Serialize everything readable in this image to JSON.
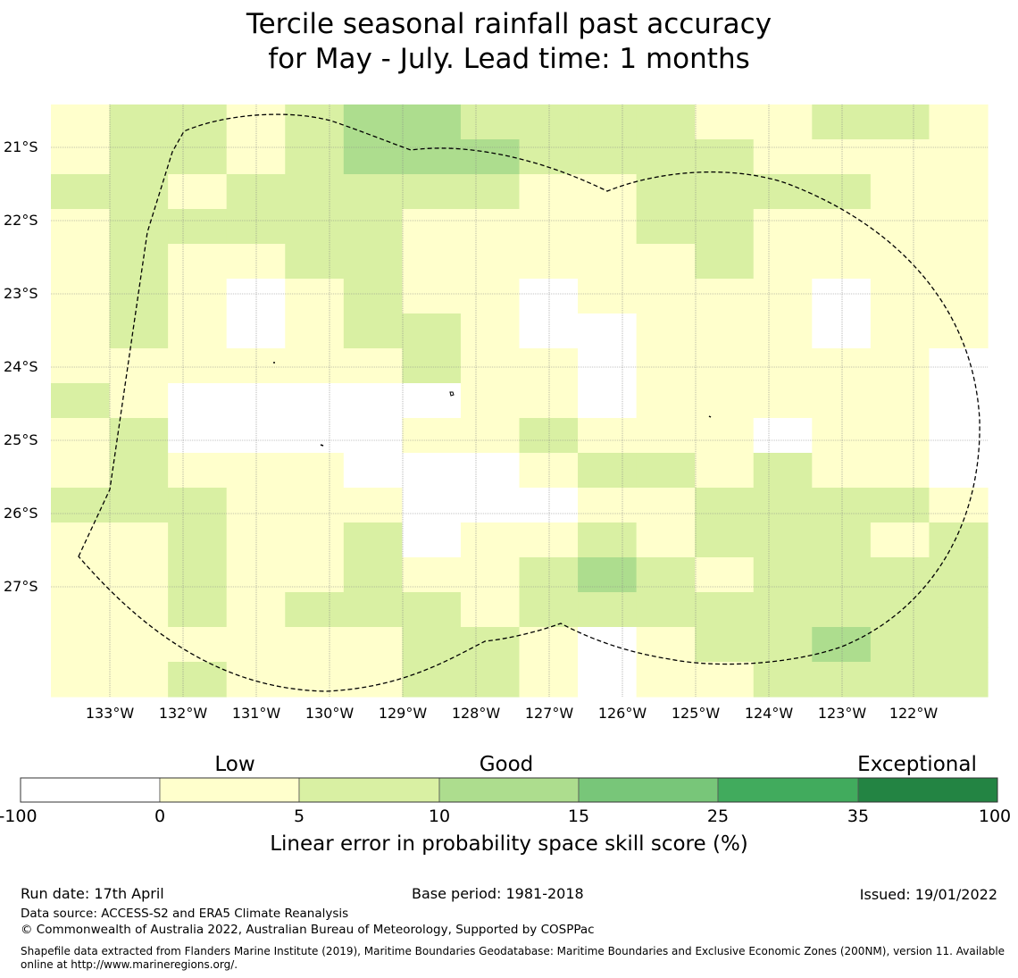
{
  "title": {
    "line1": "Tercile seasonal rainfall past accuracy",
    "line2": "for May - July. Lead time: 1 months"
  },
  "map": {
    "lat_labels": [
      "21°S",
      "22°S",
      "23°S",
      "24°S",
      "25°S",
      "26°S",
      "27°S"
    ],
    "lon_labels": [
      "133°W",
      "132°W",
      "131°W",
      "130°W",
      "129°W",
      "128°W",
      "127°W",
      "126°W",
      "125°W",
      "124°W",
      "123°W",
      "122°W"
    ],
    "skill_grid_bins": [
      [
        1,
        2,
        2,
        1,
        2,
        3,
        3,
        2,
        2,
        2,
        2,
        1,
        1,
        2,
        2,
        1
      ],
      [
        1,
        2,
        2,
        1,
        2,
        3,
        3,
        3,
        2,
        2,
        2,
        2,
        1,
        1,
        1,
        1
      ],
      [
        2,
        2,
        1,
        2,
        2,
        2,
        2,
        2,
        1,
        1,
        2,
        2,
        2,
        2,
        1,
        1
      ],
      [
        1,
        2,
        2,
        2,
        2,
        2,
        1,
        1,
        1,
        1,
        2,
        2,
        1,
        1,
        1,
        1
      ],
      [
        1,
        2,
        1,
        1,
        2,
        2,
        1,
        1,
        1,
        1,
        1,
        2,
        1,
        1,
        1,
        1
      ],
      [
        1,
        2,
        1,
        0,
        1,
        2,
        1,
        1,
        0,
        1,
        1,
        1,
        1,
        0,
        1,
        1
      ],
      [
        1,
        2,
        1,
        0,
        1,
        2,
        2,
        1,
        0,
        0,
        1,
        1,
        1,
        0,
        1,
        1
      ],
      [
        1,
        1,
        1,
        1,
        1,
        1,
        2,
        1,
        1,
        0,
        1,
        1,
        1,
        1,
        1,
        0
      ],
      [
        2,
        1,
        0,
        0,
        0,
        0,
        0,
        1,
        1,
        0,
        1,
        1,
        1,
        1,
        1,
        0
      ],
      [
        1,
        2,
        0,
        0,
        0,
        0,
        1,
        1,
        2,
        1,
        1,
        1,
        0,
        1,
        1,
        0
      ],
      [
        1,
        2,
        1,
        1,
        1,
        0,
        0,
        0,
        1,
        2,
        2,
        1,
        2,
        1,
        1,
        0
      ],
      [
        2,
        2,
        2,
        1,
        1,
        1,
        0,
        0,
        0,
        1,
        1,
        2,
        2,
        2,
        2,
        1
      ],
      [
        1,
        1,
        2,
        1,
        1,
        2,
        0,
        1,
        1,
        2,
        1,
        2,
        2,
        2,
        1,
        2
      ],
      [
        1,
        1,
        2,
        1,
        1,
        2,
        1,
        1,
        2,
        3,
        2,
        1,
        2,
        2,
        2,
        2
      ],
      [
        1,
        1,
        2,
        1,
        2,
        2,
        2,
        1,
        2,
        2,
        2,
        2,
        2,
        2,
        2,
        2
      ],
      [
        1,
        1,
        1,
        1,
        1,
        1,
        2,
        2,
        1,
        0,
        1,
        2,
        2,
        3,
        2,
        2
      ],
      [
        1,
        1,
        2,
        1,
        1,
        1,
        2,
        2,
        1,
        0,
        1,
        1,
        2,
        2,
        2,
        2
      ]
    ],
    "boundary": "dashed"
  },
  "colorbar": {
    "categories": [
      "Low",
      "Good",
      "Exceptional"
    ],
    "ticks": [
      "-100",
      "0",
      "5",
      "10",
      "15",
      "25",
      "35",
      "100"
    ],
    "colors": [
      "#ffffff",
      "#ffffcc",
      "#d9f0a3",
      "#addd8e",
      "#78c679",
      "#41ab5d",
      "#238443"
    ],
    "label": "Linear error in probability space skill score (%)"
  },
  "footer": {
    "run_date": "Run date: 17th April",
    "base_period": "Base period: 1981-2018",
    "issued": "Issued: 19/01/2022",
    "data_source": "Data source: ACCESS-S2 and ERA5 Climate Reanalysis",
    "copyright": "© Commonwealth of Australia 2022, Australian Bureau of Meteorology, Supported by COSPPac",
    "shapefile": "Shapefile data extracted from Flanders Marine Institute (2019), Maritime Boundaries Geodatabase: Maritime Boundaries and Exclusive Economic Zones (200NM), version 11. Available online at http://www.marineregions.org/."
  }
}
